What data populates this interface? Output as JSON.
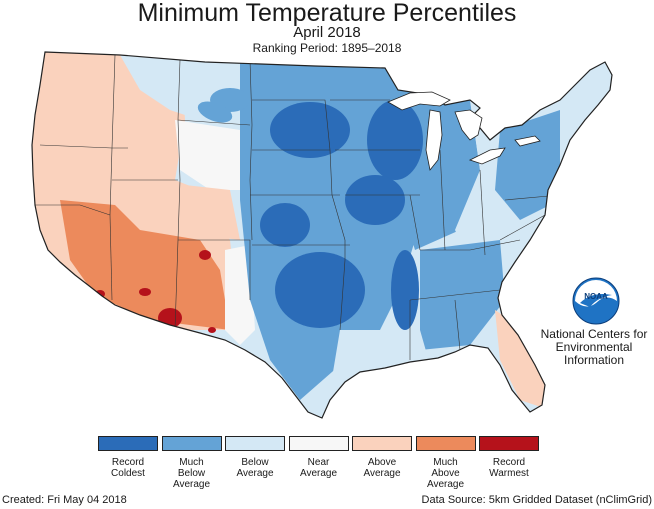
{
  "header": {
    "title": "Minimum Temperature Percentiles",
    "period": "April 2018",
    "ranking": "Ranking Period: 1895–2018"
  },
  "agency": {
    "logo_text": "NOAA",
    "line1": "National Centers for",
    "line2": "Environmental",
    "line3": "Information"
  },
  "legend": [
    {
      "lines": [
        "Record",
        "Coldest"
      ],
      "color": "#2b6cb8"
    },
    {
      "lines": [
        "Much",
        "Below",
        "Average"
      ],
      "color": "#64a3d6"
    },
    {
      "lines": [
        "Below",
        "Average"
      ],
      "color": "#d4e8f5"
    },
    {
      "lines": [
        "Near",
        "Average"
      ],
      "color": "#f7f7f7"
    },
    {
      "lines": [
        "Above",
        "Average"
      ],
      "color": "#fad2bd"
    },
    {
      "lines": [
        "Much",
        "Above",
        "Average"
      ],
      "color": "#ec8a5c"
    },
    {
      "lines": [
        "Record",
        "Warmest"
      ],
      "color": "#b5121b"
    }
  ],
  "footer": {
    "created": "Created: Fri May 04 2018",
    "source": "Data Source: 5km Gridded Dataset (nClimGrid)"
  },
  "colors": {
    "record_coldest": "#2b6cb8",
    "much_below": "#64a3d6",
    "below": "#d4e8f5",
    "near": "#f7f7f7",
    "above": "#fad2bd",
    "much_above": "#ec8a5c",
    "record_warmest": "#b5121b",
    "noaa_blue": "#1f73c4"
  },
  "icons": {
    "logo": "noaa-logo-icon"
  }
}
